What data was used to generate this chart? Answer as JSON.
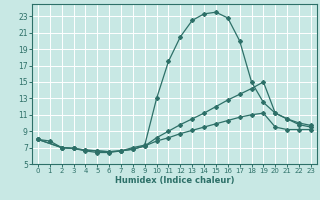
{
  "xlabel": "Humidex (Indice chaleur)",
  "bg_color": "#c8e8e4",
  "grid_color": "#ffffff",
  "line_color": "#2d7068",
  "xlim": [
    -0.5,
    23.5
  ],
  "ylim": [
    5,
    24.5
  ],
  "xticks": [
    0,
    1,
    2,
    3,
    4,
    5,
    6,
    7,
    8,
    9,
    10,
    11,
    12,
    13,
    14,
    15,
    16,
    17,
    18,
    19,
    20,
    21,
    22,
    23
  ],
  "yticks": [
    5,
    7,
    9,
    11,
    13,
    15,
    17,
    19,
    21,
    23
  ],
  "curve1_x": [
    0,
    1,
    2,
    3,
    4,
    5,
    6,
    7,
    8,
    9,
    10,
    11,
    12,
    13,
    14,
    15,
    16,
    17,
    18,
    19,
    20,
    21,
    22,
    23
  ],
  "curve1_y": [
    8.0,
    7.8,
    7.0,
    6.9,
    6.6,
    6.4,
    6.4,
    6.6,
    7.0,
    7.3,
    13.0,
    17.5,
    20.5,
    22.5,
    23.3,
    23.5,
    22.8,
    20.0,
    15.0,
    12.5,
    11.2,
    10.5,
    10.0,
    9.7
  ],
  "curve2_x": [
    0,
    2,
    3,
    4,
    5,
    6,
    7,
    8,
    9,
    10,
    11,
    12,
    13,
    14,
    15,
    16,
    17,
    18,
    19,
    20,
    21,
    22,
    23
  ],
  "curve2_y": [
    8.0,
    7.0,
    6.9,
    6.7,
    6.6,
    6.5,
    6.6,
    6.8,
    7.2,
    8.2,
    9.0,
    9.8,
    10.5,
    11.2,
    12.0,
    12.8,
    13.5,
    14.2,
    15.0,
    11.2,
    10.5,
    9.8,
    9.5
  ],
  "curve3_x": [
    0,
    2,
    3,
    4,
    5,
    6,
    7,
    8,
    9,
    10,
    11,
    12,
    13,
    14,
    15,
    16,
    17,
    18,
    19,
    20,
    21,
    22,
    23
  ],
  "curve3_y": [
    8.0,
    7.0,
    6.9,
    6.7,
    6.6,
    6.5,
    6.6,
    6.8,
    7.2,
    7.8,
    8.2,
    8.7,
    9.1,
    9.5,
    9.9,
    10.3,
    10.7,
    11.0,
    11.2,
    9.5,
    9.2,
    9.2,
    9.2
  ]
}
